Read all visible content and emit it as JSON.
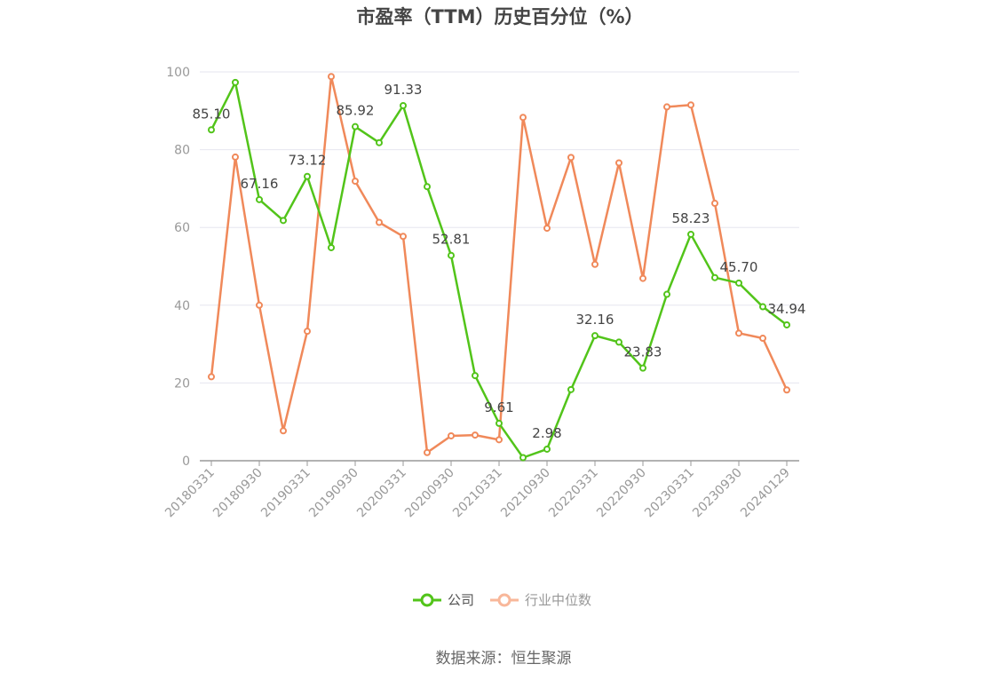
{
  "chart_data": {
    "type": "line",
    "title": "市盈率（TTM）历史百分位（%）",
    "source": "数据来源：恒生聚源",
    "ylim": [
      0,
      100
    ],
    "yticks": [
      "0",
      "20",
      "40",
      "60",
      "80",
      "100"
    ],
    "x": [
      "20180331",
      "20180630",
      "20180930",
      "20181231",
      "20190331",
      "20190630",
      "20190930",
      "20191231",
      "20200331",
      "20200630",
      "20200930",
      "20201231",
      "20210331",
      "20210630",
      "20210930",
      "20211231",
      "20220331",
      "20220630",
      "20220930",
      "20221231",
      "20230331",
      "20230630",
      "20230930",
      "20231231",
      "20240129"
    ],
    "xtick_labels": [
      "20180331",
      "20180930",
      "20190331",
      "20190930",
      "20200331",
      "20200930",
      "20210331",
      "20210930",
      "20220331",
      "20220930",
      "20230331",
      "20230930",
      "20240129"
    ],
    "series": [
      {
        "name": "公司",
        "color": "#52c41a",
        "values": [
          85.1,
          97.3,
          67.16,
          61.8,
          73.12,
          54.8,
          85.92,
          81.8,
          91.33,
          70.5,
          52.81,
          21.9,
          9.61,
          0.8,
          2.98,
          18.3,
          32.16,
          30.5,
          23.83,
          42.8,
          58.23,
          47.1,
          45.7,
          39.6,
          34.94
        ],
        "data_labels": [
          {
            "index": 0,
            "text": "85.10"
          },
          {
            "index": 2,
            "text": "67.16"
          },
          {
            "index": 4,
            "text": "73.12"
          },
          {
            "index": 6,
            "text": "85.92"
          },
          {
            "index": 8,
            "text": "91.33"
          },
          {
            "index": 10,
            "text": "52.81"
          },
          {
            "index": 12,
            "text": "9.61"
          },
          {
            "index": 14,
            "text": "2.98"
          },
          {
            "index": 16,
            "text": "32.16"
          },
          {
            "index": 18,
            "text": "23.83"
          },
          {
            "index": 20,
            "text": "58.23"
          },
          {
            "index": 22,
            "text": "45.70"
          },
          {
            "index": 24,
            "text": "34.94"
          }
        ]
      },
      {
        "name": "行业中位数",
        "color": "#f0895a",
        "values": [
          21.6,
          78.1,
          40.0,
          7.7,
          33.3,
          98.8,
          71.9,
          61.3,
          57.7,
          2.1,
          6.4,
          6.6,
          5.4,
          88.3,
          59.8,
          78.0,
          50.5,
          76.6,
          46.9,
          91.0,
          91.5,
          66.2,
          32.8,
          31.5,
          18.2
        ]
      }
    ],
    "legend": [
      {
        "label": "公司",
        "color": "#52c41a",
        "active": true
      },
      {
        "label": "行业中位数",
        "color": "#f8b79a",
        "active": false
      }
    ],
    "grid": true
  }
}
